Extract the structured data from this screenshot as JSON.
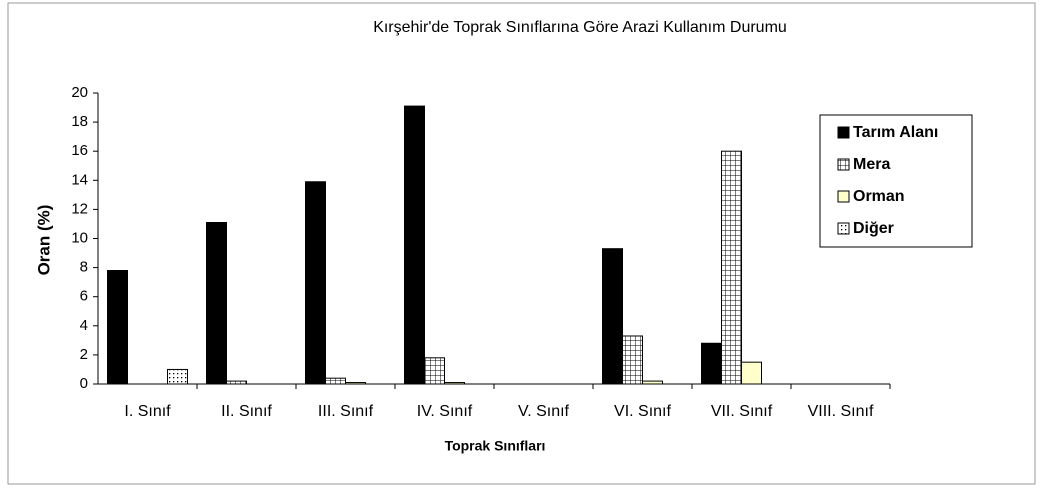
{
  "chart_data": {
    "type": "bar",
    "title": "Kırşehir'de Toprak Sınıflarına Göre Arazi Kullanım Durumu",
    "xlabel": "Toprak Sınıfları",
    "ylabel": "Oran (%)",
    "categories": [
      "I. Sınıf",
      "II. Sınıf",
      "III. Sınıf",
      "IV. Sınıf",
      "V. Sınıf",
      "VI. Sınıf",
      "VII. Sınıf",
      "VIII. Sınıf"
    ],
    "series": [
      {
        "name": "Tarım Alanı",
        "color": "#000000",
        "pattern": null,
        "values": [
          7.8,
          11.1,
          13.9,
          19.1,
          0,
          9.3,
          2.8,
          0
        ]
      },
      {
        "name": "Mera",
        "color": "#ffffff",
        "pattern": "grid",
        "values": [
          0,
          0.2,
          0.4,
          1.8,
          0,
          3.3,
          16.0,
          0
        ]
      },
      {
        "name": "Orman",
        "color": "#ffffcc",
        "pattern": null,
        "values": [
          0,
          0,
          0.1,
          0.1,
          0,
          0.2,
          1.5,
          0
        ]
      },
      {
        "name": "Diğer",
        "color": "#ffffff",
        "pattern": "dots",
        "values": [
          1.0,
          0,
          0,
          0,
          0,
          0,
          0,
          0
        ]
      }
    ],
    "ylim": [
      0,
      20
    ],
    "yticks": [
      0,
      2,
      4,
      6,
      8,
      10,
      12,
      14,
      16,
      18,
      20
    ],
    "grid": false,
    "legend": "right"
  }
}
